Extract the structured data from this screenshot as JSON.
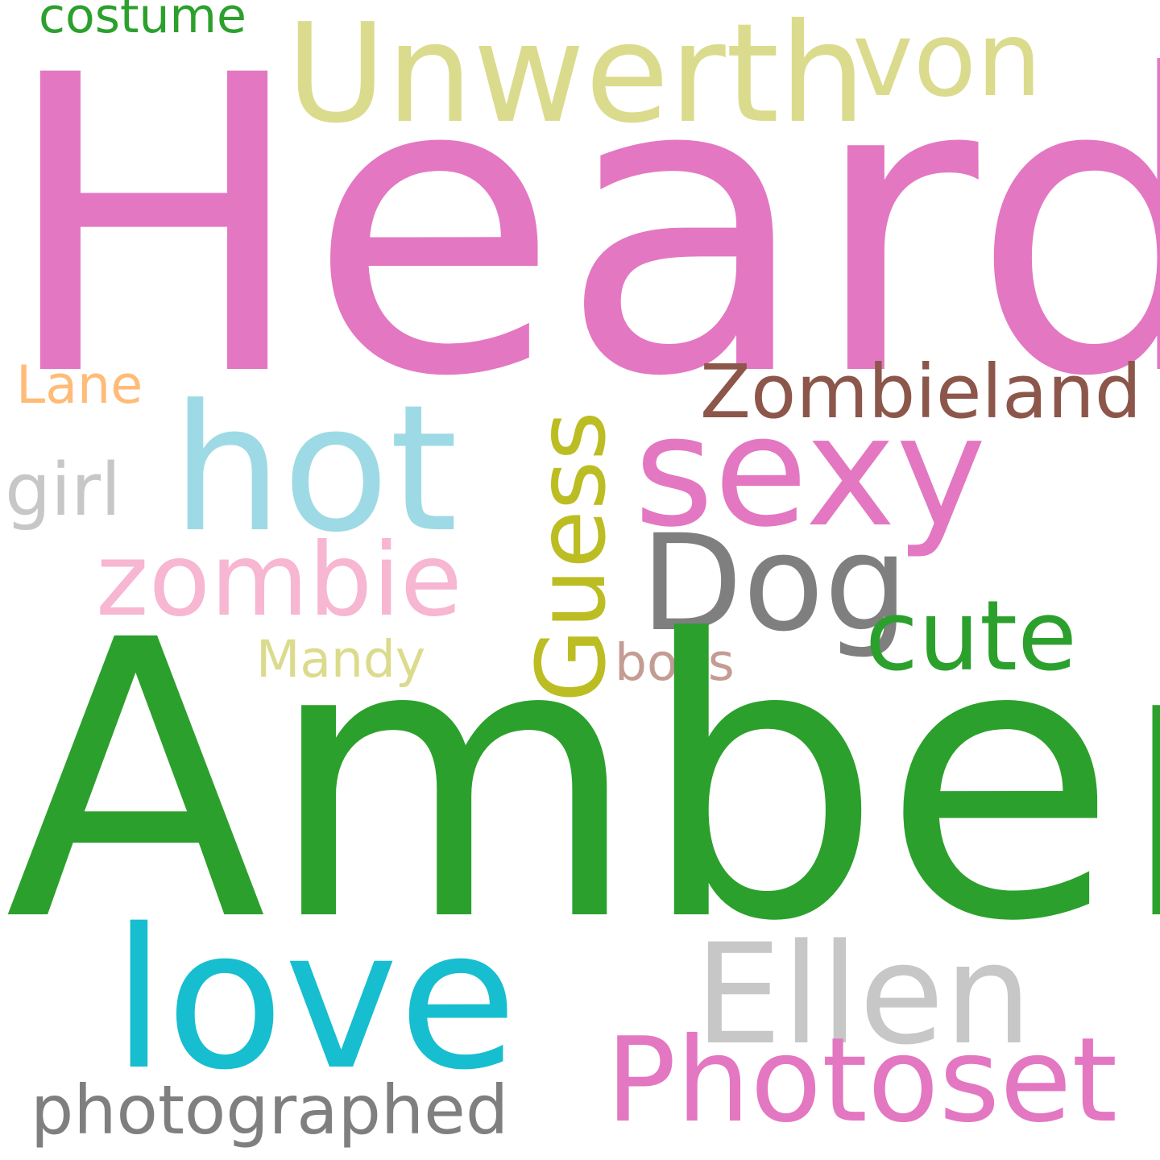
{
  "wordcloud": {
    "background": "#ffffff",
    "words": {
      "heard": {
        "text": "Heard",
        "color": "#e377c2"
      },
      "amber": {
        "text": "Amber",
        "color": "#2ca02c"
      },
      "unwerth": {
        "text": "Unwerth",
        "color": "#dbdb8d"
      },
      "von": {
        "text": "von",
        "color": "#dbdb8d"
      },
      "costume": {
        "text": "costume",
        "color": "#2ca02c"
      },
      "love": {
        "text": "love",
        "color": "#17becf"
      },
      "ellen": {
        "text": "Ellen",
        "color": "#c7c7c7"
      },
      "photoset": {
        "text": "Photoset",
        "color": "#e377c2"
      },
      "photographed": {
        "text": "photographed",
        "color": "#7f7f7f"
      },
      "hot": {
        "text": "hot",
        "color": "#9edae5"
      },
      "sexy": {
        "text": "sexy",
        "color": "#e377c2"
      },
      "zombieland": {
        "text": "Zombieland",
        "color": "#8c564b"
      },
      "lane": {
        "text": "Lane",
        "color": "#ffbb78"
      },
      "girl": {
        "text": "girl",
        "color": "#c7c7c7"
      },
      "zombie": {
        "text": "zombie",
        "color": "#f7b6d2"
      },
      "dog": {
        "text": "Dog",
        "color": "#7f7f7f"
      },
      "cute": {
        "text": "cute",
        "color": "#2ca02c"
      },
      "mandy": {
        "text": "Mandy",
        "color": "#dbdb8d"
      },
      "boys": {
        "text": "boys",
        "color": "#c49c94"
      },
      "guess": {
        "text": "Guess",
        "color": "#bcbd22"
      }
    }
  }
}
